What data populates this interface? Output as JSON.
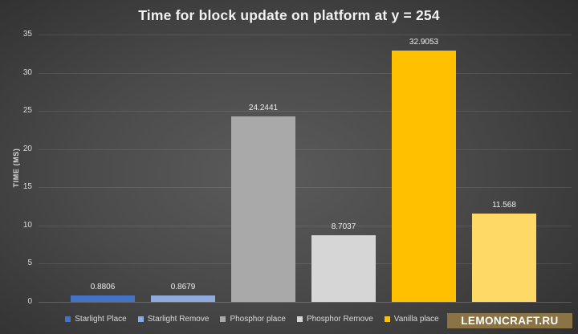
{
  "chart_data": {
    "type": "bar",
    "title": "Time for block update on platform at y = 254",
    "xlabel": "",
    "ylabel": "TIME (MS)",
    "ylim": [
      0,
      35
    ],
    "yticks": [
      0,
      5,
      10,
      15,
      20,
      25,
      30,
      35
    ],
    "grid": true,
    "legend_position": "bottom",
    "series": [
      {
        "name": "Starlight Place",
        "value": 0.8806,
        "data_label": "0.8806",
        "color": "#4472c4",
        "legend_label_visible": true
      },
      {
        "name": "Starlight Remove",
        "value": 0.8679,
        "data_label": "0.8679",
        "color": "#8faadc",
        "legend_label_visible": true
      },
      {
        "name": "Phosphor place",
        "value": 24.2441,
        "data_label": "24.2441",
        "color": "#a9a9a9",
        "legend_label_visible": true
      },
      {
        "name": "Phosphor Remove",
        "value": 8.7037,
        "data_label": "8.7037",
        "color": "#d6d6d6",
        "legend_label_visible": true
      },
      {
        "name": "Vanilla place",
        "value": 32.9053,
        "data_label": "32.9053",
        "color": "#ffc000",
        "legend_label_visible": true
      },
      {
        "name": "",
        "value": 11.568,
        "data_label": "11.568",
        "color": "#ffd966",
        "legend_label_visible": false
      }
    ]
  },
  "watermark": {
    "text": "LEMONCRAFT.RU",
    "background_color": "#8a7446"
  },
  "colors": {
    "title_text": "#f2f2f2",
    "axis_text": "#d9d9d9",
    "gridline": "rgba(255,255,255,0.10)"
  }
}
